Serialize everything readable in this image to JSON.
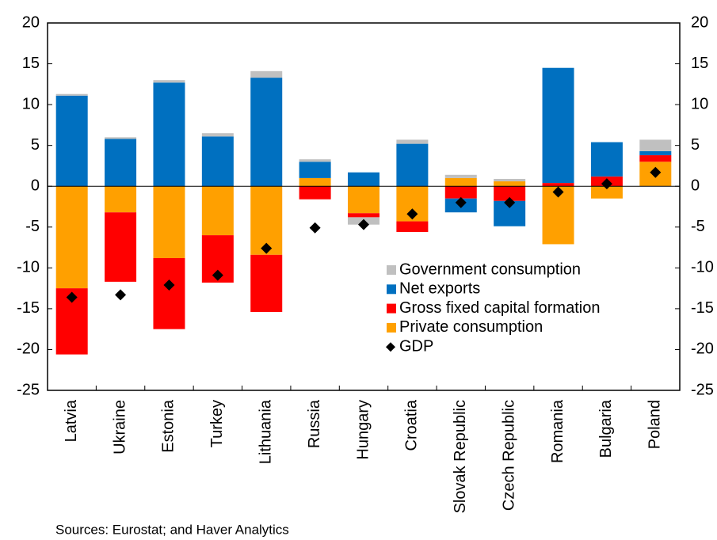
{
  "chart_data": {
    "type": "bar",
    "stacked": true,
    "categories": [
      "Latvia",
      "Ukraine",
      "Estonia",
      "Turkey",
      "Lithuania",
      "Russia",
      "Hungary",
      "Croatia",
      "Slovak Republic",
      "Czech Republic",
      "Romania",
      "Bulgaria",
      "Poland"
    ],
    "series": [
      {
        "name": "Government consumption",
        "color": "#c0c0c0",
        "values": [
          0.2,
          0.2,
          0.3,
          0.4,
          0.8,
          0.3,
          -0.9,
          0.5,
          0.4,
          0.3,
          0,
          0,
          1.4
        ]
      },
      {
        "name": "Net exports",
        "color": "#0070c0",
        "values": [
          11.1,
          5.8,
          12.7,
          6.1,
          13.3,
          2.0,
          1.7,
          5.2,
          -1.7,
          -3.1,
          14.1,
          4.2,
          0.5
        ]
      },
      {
        "name": "Gross fixed capital formation",
        "color": "#ff0000",
        "values": [
          -8.1,
          -8.5,
          -8.7,
          -5.8,
          -7.0,
          -1.6,
          -0.5,
          -1.3,
          -1.5,
          -1.8,
          0.4,
          1.2,
          0.8
        ]
      },
      {
        "name": "Private consumption",
        "color": "#ffa000",
        "values": [
          -12.5,
          -3.2,
          -8.8,
          -6.0,
          -8.4,
          1.0,
          -3.3,
          -4.3,
          1.0,
          0.6,
          -7.1,
          -1.5,
          3.0
        ]
      },
      {
        "name": "GDP",
        "color": "#000000",
        "mark": "diamond",
        "values": [
          -13.6,
          -13.3,
          -12.1,
          -10.9,
          -7.6,
          -5.1,
          -4.7,
          -3.4,
          -2.0,
          -2.0,
          -0.7,
          0.3,
          1.7
        ]
      }
    ],
    "ylim": [
      -25,
      20
    ],
    "yticks": [
      -25,
      -20,
      -15,
      -10,
      -5,
      0,
      5,
      10,
      15,
      20
    ],
    "y2lim": [
      -25,
      20
    ],
    "y2ticks": [
      -25,
      -20,
      -15,
      -10,
      -5,
      0,
      5,
      10,
      15,
      20
    ],
    "source": "Sources: Eurostat; and Haver Analytics"
  }
}
